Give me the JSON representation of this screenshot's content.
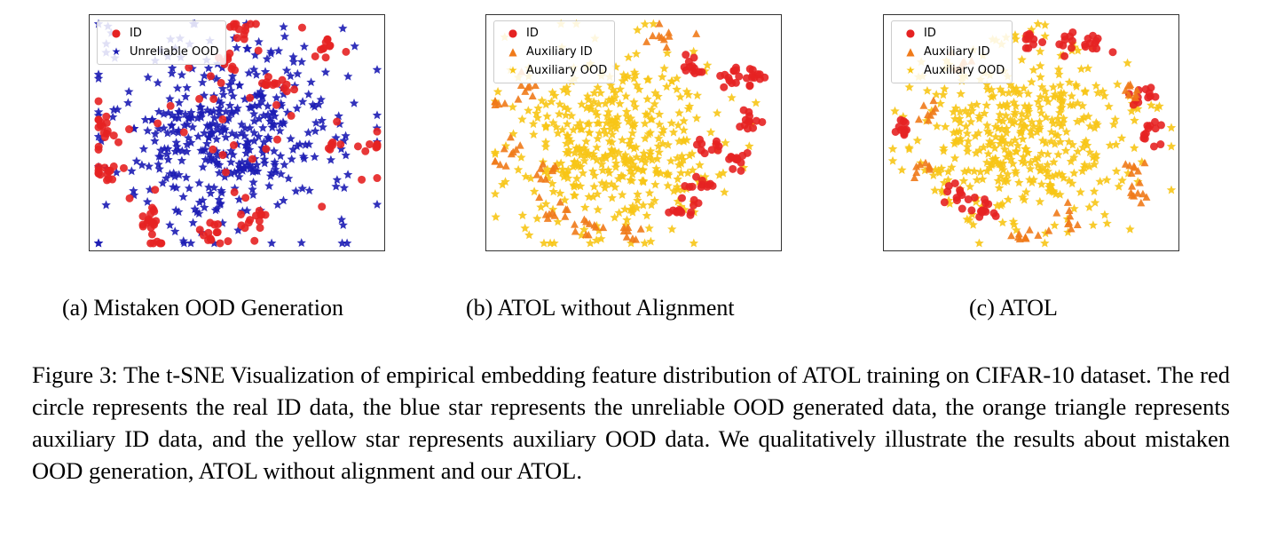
{
  "colors": {
    "id": "#e52222",
    "unreliable_ood": "#1c1cb4",
    "aux_id": "#f07a1a",
    "aux_ood": "#f7c516"
  },
  "chart_data": [
    {
      "type": "scatter",
      "subcaption": "(a)  Mistaken OOD Generation",
      "legend_placement": "top-left",
      "grid": false,
      "legend": [
        {
          "name": "ID",
          "marker": "circle",
          "color": "#e52222"
        },
        {
          "name": "Unreliable OOD",
          "marker": "star",
          "color": "#1c1cb4"
        }
      ],
      "clusters": [
        {
          "series": "Unreliable OOD",
          "center": [
            -3,
            0
          ],
          "spread": [
            22,
            16
          ],
          "n": 420
        },
        {
          "series": "ID",
          "center": [
            2,
            36
          ],
          "spread": [
            2,
            2
          ],
          "n": 12
        },
        {
          "series": "ID",
          "center": [
            -3,
            24
          ],
          "spread": [
            2,
            2
          ],
          "n": 8
        },
        {
          "series": "ID",
          "center": [
            13,
            16
          ],
          "spread": [
            3,
            2
          ],
          "n": 12
        },
        {
          "series": "ID",
          "center": [
            -45,
            2
          ],
          "spread": [
            2,
            3
          ],
          "n": 14
        },
        {
          "series": "ID",
          "center": [
            -44,
            -14
          ],
          "spread": [
            3,
            2
          ],
          "n": 14
        },
        {
          "series": "ID",
          "center": [
            -30,
            -29
          ],
          "spread": [
            1.5,
            3
          ],
          "n": 16
        },
        {
          "series": "ID",
          "center": [
            -27,
            -38
          ],
          "spread": [
            1,
            1
          ],
          "n": 6
        },
        {
          "series": "ID",
          "center": [
            -10,
            -34
          ],
          "spread": [
            3,
            3
          ],
          "n": 12
        },
        {
          "series": "ID",
          "center": [
            5,
            -29
          ],
          "spread": [
            3,
            3
          ],
          "n": 12
        },
        {
          "series": "ID",
          "center": [
            45,
            -4
          ],
          "spread": [
            3,
            1
          ],
          "n": 8
        },
        {
          "series": "ID",
          "center": [
            33,
            -4
          ],
          "spread": [
            3,
            1
          ],
          "n": 6
        },
        {
          "series": "ID",
          "center": [
            30,
            30
          ],
          "spread": [
            3,
            1.5
          ],
          "n": 10
        },
        {
          "series": "ID",
          "center": [
            0,
            0
          ],
          "spread": [
            25,
            18
          ],
          "n": 40
        }
      ]
    },
    {
      "type": "scatter",
      "subcaption": "(b)  ATOL without Alignment",
      "legend_placement": "top-left",
      "grid": false,
      "legend": [
        {
          "name": "ID",
          "marker": "circle",
          "color": "#e52222"
        },
        {
          "name": "Auxiliary ID",
          "marker": "triangle",
          "color": "#f07a1a"
        },
        {
          "name": "Auxiliary OOD",
          "marker": "star",
          "color": "#f7c516"
        }
      ],
      "clusters": [
        {
          "series": "Auxiliary OOD",
          "center": [
            -8,
            -4
          ],
          "spread": [
            18,
            15
          ],
          "n": 420
        },
        {
          "series": "Auxiliary ID",
          "center": [
            -36,
            16
          ],
          "spread": [
            2,
            2
          ],
          "n": 8
        },
        {
          "series": "Auxiliary ID",
          "center": [
            -43,
            -6
          ],
          "spread": [
            2,
            3
          ],
          "n": 10
        },
        {
          "series": "Auxiliary ID",
          "center": [
            -31,
            -13
          ],
          "spread": [
            2,
            2
          ],
          "n": 8
        },
        {
          "series": "Auxiliary ID",
          "center": [
            -28,
            -26
          ],
          "spread": [
            3,
            2
          ],
          "n": 10
        },
        {
          "series": "Auxiliary ID",
          "center": [
            -15,
            -32
          ],
          "spread": [
            3,
            2
          ],
          "n": 10
        },
        {
          "series": "Auxiliary ID",
          "center": [
            0,
            -34
          ],
          "spread": [
            2,
            1.5
          ],
          "n": 8
        },
        {
          "series": "Auxiliary ID",
          "center": [
            10,
            34
          ],
          "spread": [
            4,
            3
          ],
          "n": 10
        },
        {
          "series": "Auxiliary ID",
          "center": [
            -45,
            12
          ],
          "spread": [
            2,
            2
          ],
          "n": 6
        },
        {
          "series": "ID",
          "center": [
            20,
            22
          ],
          "spread": [
            2,
            2
          ],
          "n": 12
        },
        {
          "series": "ID",
          "center": [
            32,
            20
          ],
          "spread": [
            2,
            2
          ],
          "n": 12
        },
        {
          "series": "ID",
          "center": [
            40,
            18
          ],
          "spread": [
            2,
            2
          ],
          "n": 12
        },
        {
          "series": "ID",
          "center": [
            38,
            4
          ],
          "spread": [
            2,
            2
          ],
          "n": 12
        },
        {
          "series": "ID",
          "center": [
            34,
            -8
          ],
          "spread": [
            2,
            2
          ],
          "n": 12
        },
        {
          "series": "ID",
          "center": [
            26,
            -4
          ],
          "spread": [
            2,
            2
          ],
          "n": 10
        },
        {
          "series": "ID",
          "center": [
            22,
            -18
          ],
          "spread": [
            3,
            1.5
          ],
          "n": 12
        },
        {
          "series": "ID",
          "center": [
            17,
            -26
          ],
          "spread": [
            3,
            1.5
          ],
          "n": 12
        }
      ]
    },
    {
      "type": "scatter",
      "subcaption": "(c)  ATOL",
      "legend_placement": "top-left",
      "grid": false,
      "legend": [
        {
          "name": "ID",
          "marker": "circle",
          "color": "#e52222"
        },
        {
          "name": "Auxiliary ID",
          "marker": "triangle",
          "color": "#f07a1a"
        },
        {
          "name": "Auxiliary OOD",
          "marker": "star",
          "color": "#f7c516"
        }
      ],
      "clusters": [
        {
          "series": "Auxiliary OOD",
          "center": [
            -2,
            0
          ],
          "spread": [
            19,
            15
          ],
          "n": 420
        },
        {
          "series": "ID",
          "center": [
            0,
            32
          ],
          "spread": [
            2,
            2
          ],
          "n": 10
        },
        {
          "series": "ID",
          "center": [
            12,
            32
          ],
          "spread": [
            2,
            2
          ],
          "n": 10
        },
        {
          "series": "ID",
          "center": [
            22,
            30
          ],
          "spread": [
            2,
            2
          ],
          "n": 10
        },
        {
          "series": "ID",
          "center": [
            -43,
            2
          ],
          "spread": [
            2,
            2
          ],
          "n": 12
        },
        {
          "series": "ID",
          "center": [
            -25,
            -21
          ],
          "spread": [
            3,
            2
          ],
          "n": 12
        },
        {
          "series": "ID",
          "center": [
            -15,
            -26
          ],
          "spread": [
            3,
            2
          ],
          "n": 12
        },
        {
          "series": "ID",
          "center": [
            38,
            12
          ],
          "spread": [
            2,
            2
          ],
          "n": 12
        },
        {
          "series": "ID",
          "center": [
            40,
            0
          ],
          "spread": [
            2,
            2
          ],
          "n": 12
        },
        {
          "series": "Auxiliary ID",
          "center": [
            -25,
            24
          ],
          "spread": [
            2,
            2
          ],
          "n": 8
        },
        {
          "series": "Auxiliary ID",
          "center": [
            -35,
            8
          ],
          "spread": [
            2,
            2
          ],
          "n": 8
        },
        {
          "series": "Auxiliary ID",
          "center": [
            -38,
            -12
          ],
          "spread": [
            2,
            2
          ],
          "n": 8
        },
        {
          "series": "Auxiliary ID",
          "center": [
            -2,
            -34
          ],
          "spread": [
            3,
            1
          ],
          "n": 10
        },
        {
          "series": "Auxiliary ID",
          "center": [
            13,
            -30
          ],
          "spread": [
            2,
            2
          ],
          "n": 8
        },
        {
          "series": "Auxiliary ID",
          "center": [
            34,
            -12
          ],
          "spread": [
            2,
            2
          ],
          "n": 8
        },
        {
          "series": "Auxiliary ID",
          "center": [
            36,
            -20
          ],
          "spread": [
            2,
            2
          ],
          "n": 8
        },
        {
          "series": "Auxiliary ID",
          "center": [
            34,
            14
          ],
          "spread": [
            2,
            2
          ],
          "n": 8
        }
      ]
    }
  ],
  "caption": "Figure 3: The t-SNE Visualization of empirical embedding feature distribution of ATOL training on CIFAR-10 dataset. The red circle represents the real ID data, the blue star represents the unreliable OOD generated data, the orange triangle represents auxiliary ID data, and the yellow star represents auxiliary OOD data. We qualitatively illustrate the results about mistaken OOD generation, ATOL without alignment and our ATOL."
}
